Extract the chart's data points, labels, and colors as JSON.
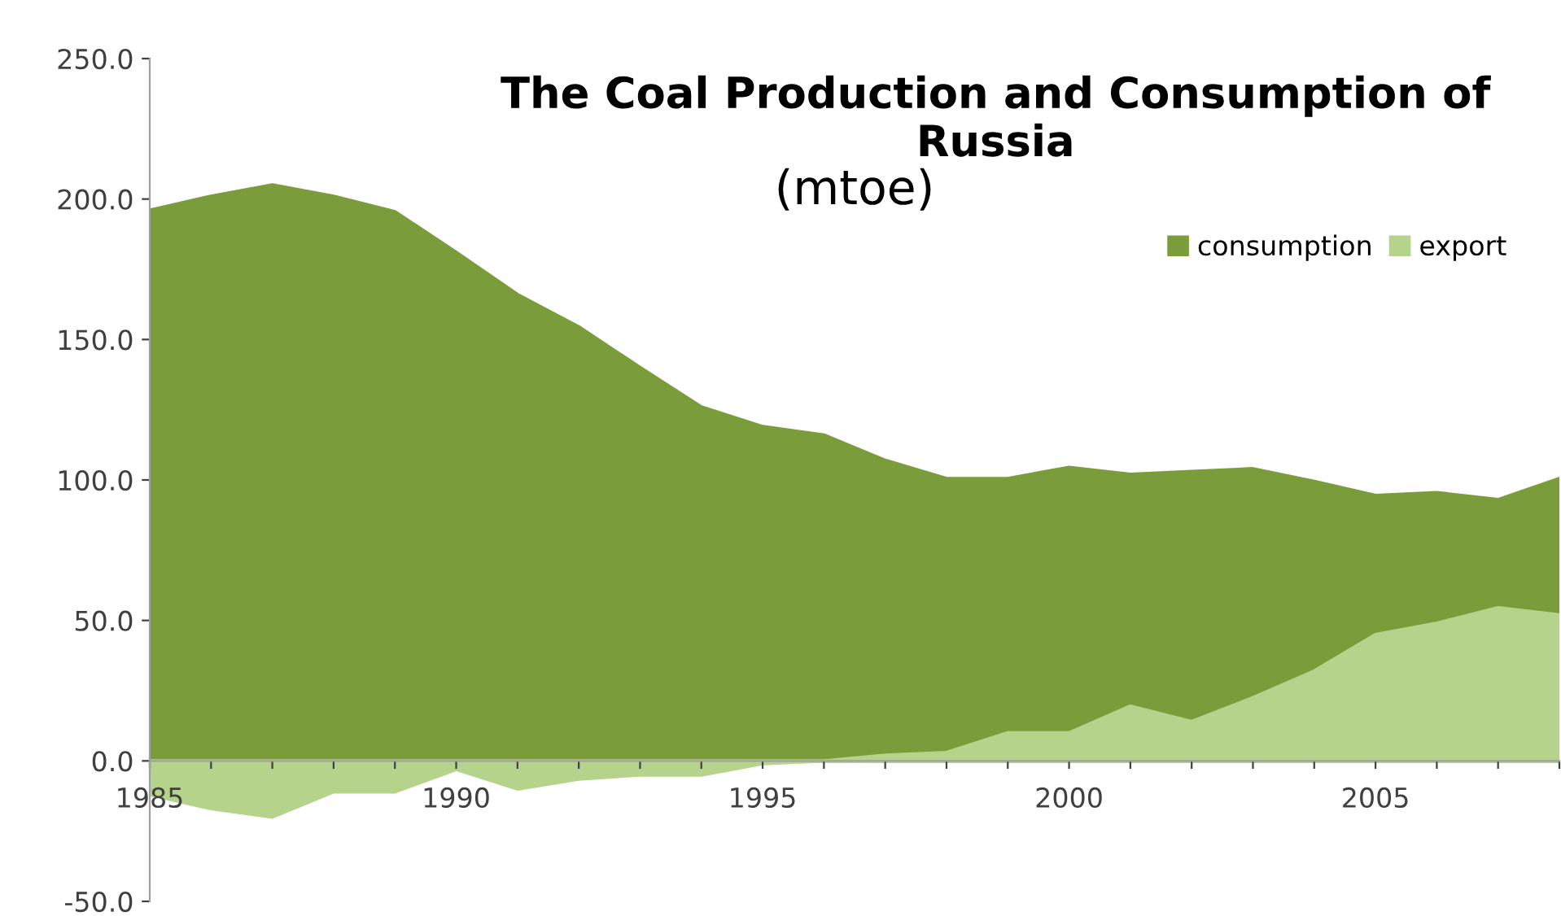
{
  "chart_data": {
    "type": "area",
    "title": "The Coal Production and Consumption of Russia",
    "subtitle": "(mtoe)",
    "x": [
      1985,
      1986,
      1987,
      1988,
      1989,
      1990,
      1991,
      1992,
      1993,
      1994,
      1995,
      1996,
      1997,
      1998,
      1999,
      2000,
      2001,
      2002,
      2003,
      2004,
      2005,
      2006,
      2007,
      2008
    ],
    "series": [
      {
        "name": "consumption",
        "color": "#7a9c3a",
        "values": [
          196,
          201,
          205,
          201,
          195.5,
          181,
          166,
          154.5,
          140,
          126,
          119,
          116,
          107,
          100.5,
          100.5,
          104.5,
          102,
          103,
          104,
          99.5,
          94.5,
          95.5,
          93,
          100.5
        ]
      },
      {
        "name": "export",
        "color": "#b5d38a",
        "values": [
          -12,
          -17,
          -20,
          -11,
          -11,
          -3,
          -10,
          -6.5,
          -5,
          -5,
          -1,
          0,
          2,
          3,
          10,
          10,
          19.5,
          14,
          22.5,
          32,
          45,
          49,
          54.5,
          52
        ]
      }
    ],
    "xlim": [
      1985,
      2008
    ],
    "xticks": [
      1985,
      {
        "value": 1986,
        "label": null
      },
      {
        "value": 1987,
        "label": null
      },
      {
        "value": 1988,
        "label": null
      },
      {
        "value": 1989,
        "label": null
      },
      1990,
      {
        "value": 1991,
        "label": null
      },
      {
        "value": 1992,
        "label": null
      },
      {
        "value": 1993,
        "label": null
      },
      {
        "value": 1994,
        "label": null
      },
      1995,
      {
        "value": 1996,
        "label": null
      },
      {
        "value": 1997,
        "label": null
      },
      {
        "value": 1998,
        "label": null
      },
      {
        "value": 1999,
        "label": null
      },
      2000,
      {
        "value": 2001,
        "label": null
      },
      {
        "value": 2002,
        "label": null
      },
      {
        "value": 2003,
        "label": null
      },
      {
        "value": 2004,
        "label": null
      },
      2005,
      {
        "value": 2006,
        "label": null
      },
      {
        "value": 2007,
        "label": null
      },
      {
        "value": 2008,
        "label": null
      }
    ],
    "ylim": [
      -50,
      250
    ],
    "yticks": [
      {
        "value": -50,
        "label": "-50.0"
      },
      {
        "value": 0,
        "label": "0.0"
      },
      {
        "value": 50,
        "label": "50.0"
      },
      {
        "value": 100,
        "label": "100.0"
      },
      {
        "value": 150,
        "label": "150.0"
      },
      {
        "value": 200,
        "label": "200.0"
      },
      {
        "value": 250,
        "label": "250.0"
      }
    ],
    "grid": false,
    "legend": "top right"
  }
}
